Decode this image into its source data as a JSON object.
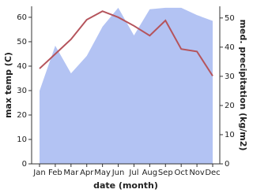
{
  "chart_data": {
    "type": "line-area",
    "xlabel": "date (month)",
    "ylabel": "max temp (C)",
    "y2label": "med. precipitation (kg/m2)",
    "categories": [
      "Jan",
      "Feb",
      "Mar",
      "Apr",
      "May",
      "Jun",
      "Jul",
      "Aug",
      "Sep",
      "Oct",
      "Nov",
      "Dec"
    ],
    "series": [
      {
        "name": "max temp",
        "type": "line",
        "color": "#b5545c",
        "values": [
          39,
          45,
          51,
          59,
          62.5,
          60,
          56.5,
          52.5,
          58.7,
          47,
          46,
          36
        ]
      },
      {
        "name": "med. precipitation",
        "type": "area",
        "axis": "y2",
        "color": "#b3c3f3",
        "values": [
          25,
          40.5,
          31,
          37,
          47,
          53.5,
          44,
          53,
          53.5,
          53.5,
          51,
          49
        ]
      }
    ],
    "ylim": [
      0,
      64.5
    ],
    "yticks": [
      0,
      10,
      20,
      30,
      40,
      50,
      60
    ],
    "y2lim": [
      0,
      54
    ],
    "y2ticks": [
      0,
      10,
      20,
      30,
      40,
      50
    ]
  }
}
